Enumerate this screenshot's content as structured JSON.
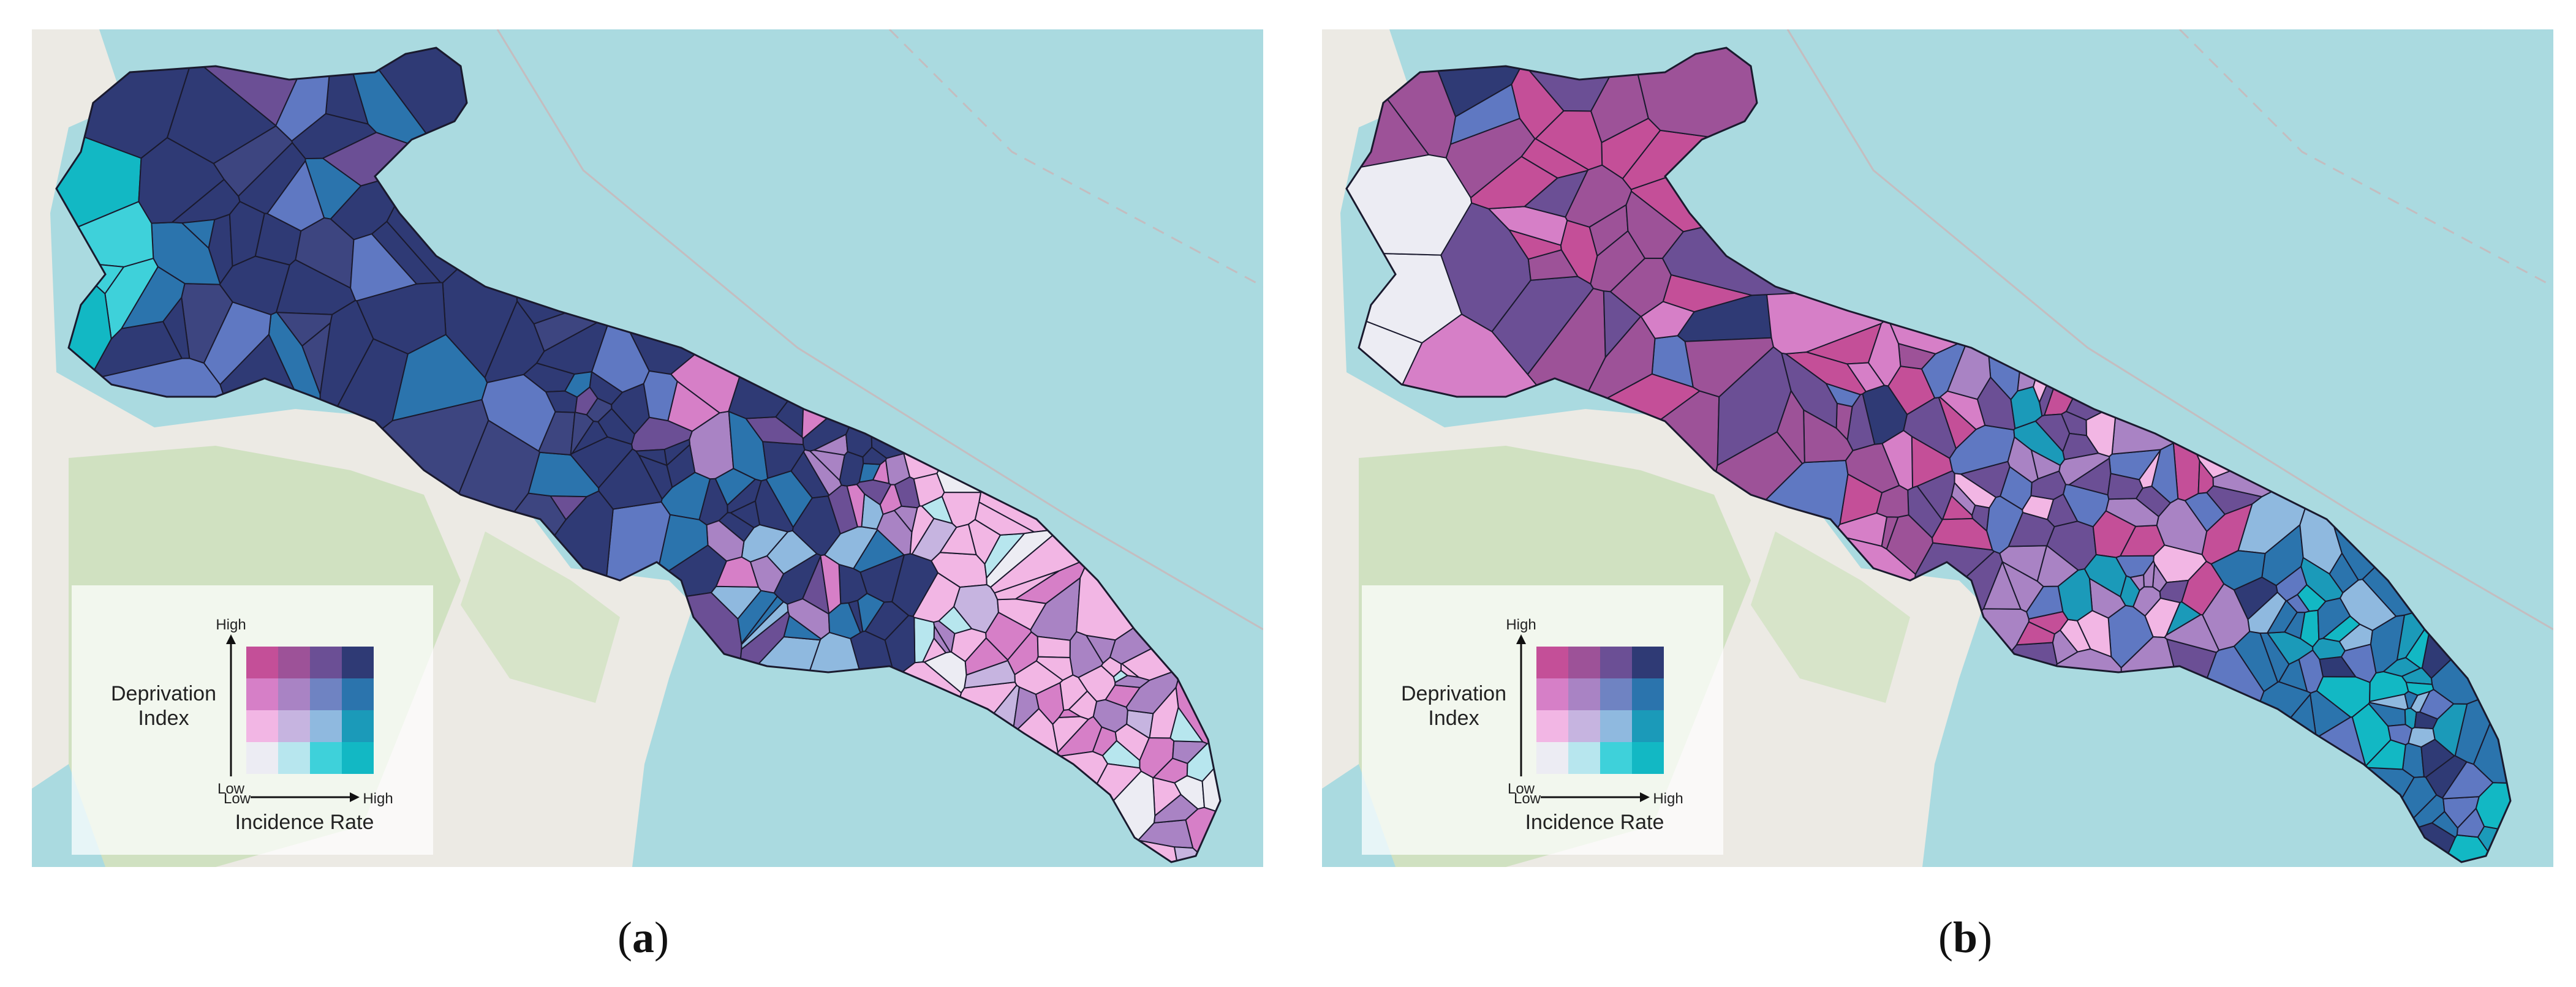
{
  "colors": {
    "sea": "#aadae0",
    "land": "#eceae4",
    "forest": "#c9dfb8",
    "bivariate_grid": [
      [
        "#c44f98",
        "#9d5298",
        "#6b4f95",
        "#2f3a75"
      ],
      [
        "#d67fc7",
        "#a983c4",
        "#6f83c2",
        "#2b74ad"
      ],
      [
        "#f2b6e4",
        "#c6b4e0",
        "#8fb9df",
        "#1b9ab9"
      ],
      [
        "#ececf3",
        "#b7e6ee",
        "#3ed1da",
        "#12b8c4"
      ]
    ]
  },
  "legend": {
    "y_high": "High",
    "y_low": "Low",
    "y_title_line1": "Deprivation",
    "y_title_line2": "Index",
    "x_low": "Low",
    "x_high": "High",
    "x_title": "Incidence Rate"
  },
  "panels": [
    {
      "id": "a",
      "label": "a"
    },
    {
      "id": "b",
      "label": "b"
    }
  ],
  "regions": {
    "panel_a": [
      "#2f3a75",
      "#6b4f95",
      "#3d4580",
      "#7a5aa0",
      "#2b74ad",
      "#5f78c2",
      "#a983c4",
      "#d67fc7",
      "#f2b6e4",
      "#3ed1da",
      "#12b8c4",
      "#c6b4e0",
      "#8fb9df",
      "#9d5298"
    ],
    "panel_b": [
      "#9d5298",
      "#c44f98",
      "#6b4f95",
      "#d67fc7",
      "#a983c4",
      "#2f3a75",
      "#5f78c2",
      "#2b74ad",
      "#1b9ab9",
      "#3ed1da",
      "#f2b6e4",
      "#8fb9df",
      "#12b8c4",
      "#c6b4e0"
    ]
  }
}
